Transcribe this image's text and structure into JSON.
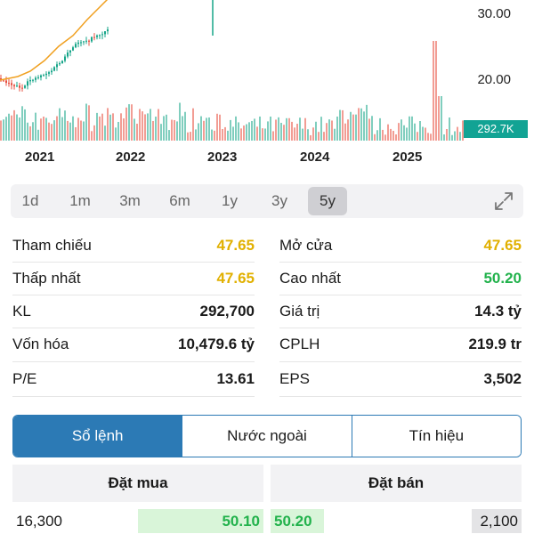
{
  "chart": {
    "price_labels": [
      "30.00",
      "20.00"
    ],
    "years": [
      "2021",
      "2022",
      "2023",
      "2024",
      "2025"
    ],
    "volume_badge": "292.7K",
    "colors": {
      "up": "#17a589",
      "down": "#e74c3c",
      "volume": "#12a394"
    }
  },
  "ranges": {
    "tabs": [
      "1d",
      "1m",
      "3m",
      "6m",
      "1y",
      "3y",
      "5y"
    ],
    "active": "5y",
    "expand_icon": "expand-icon"
  },
  "stats": {
    "left": [
      {
        "label": "Tham chiếu",
        "value": "47.65"
      },
      {
        "label": "Thấp nhất",
        "value": "47.65"
      },
      {
        "label": "KL",
        "value": "292,700"
      },
      {
        "label": "Vốn hóa",
        "value": "10,479.6 tỷ"
      },
      {
        "label": "P/E",
        "value": "13.61"
      }
    ],
    "right": [
      {
        "label": "Mở cửa",
        "value": "47.65"
      },
      {
        "label": "Cao nhất",
        "value": "50.20"
      },
      {
        "label": "Giá trị",
        "value": "14.3 tỷ"
      },
      {
        "label": "CPLH",
        "value": "219.9 tr"
      },
      {
        "label": "EPS",
        "value": "3,502"
      }
    ]
  },
  "segments": {
    "items": [
      "Sổ lệnh",
      "Nước ngoài",
      "Tín hiệu"
    ],
    "active": "Sổ lệnh"
  },
  "order_book": {
    "buy_header": "Đặt mua",
    "sell_header": "Đặt bán",
    "rows": [
      {
        "buy_volume": "16,300",
        "buy_price": "50.10",
        "sell_price": "50.20",
        "sell_volume": "2,100"
      }
    ]
  }
}
